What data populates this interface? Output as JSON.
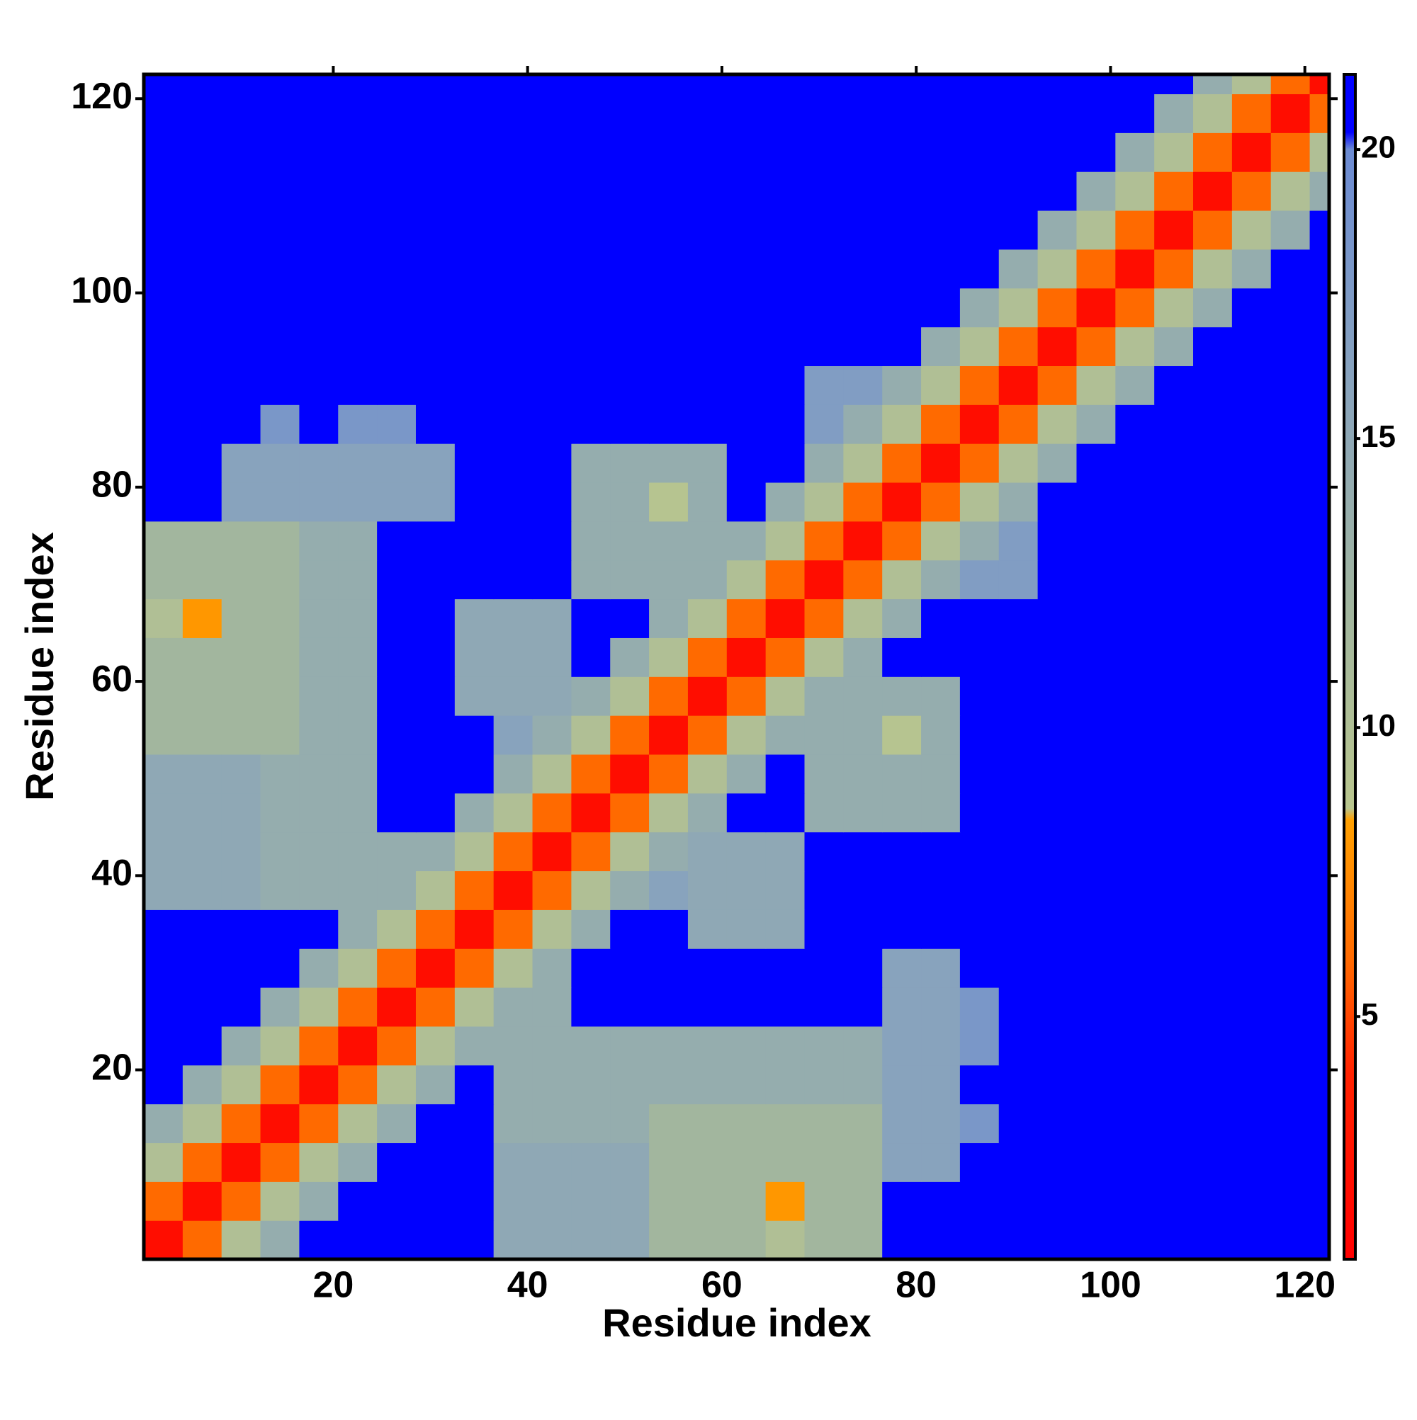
{
  "chart_data": {
    "type": "heatmap",
    "xlabel": "Residue index",
    "ylabel": "Residue index",
    "xbins": [
      0.5,
      4.5,
      8.5,
      12.5,
      16.5,
      20.5,
      24.5,
      28.5,
      32.5,
      36.5,
      40.5,
      44.5,
      48.5,
      52.5,
      56.5,
      60.5,
      64.5,
      68.5,
      72.5,
      76.5,
      80.5,
      84.5,
      88.5,
      92.5,
      96.5,
      100.5,
      104.5,
      108.5,
      112.5,
      116.5,
      120.5,
      122.5
    ],
    "ybins": [
      0.5,
      4.5,
      8.5,
      12.5,
      16.5,
      20.5,
      24.5,
      28.5,
      32.5,
      36.5,
      40.5,
      44.5,
      48.5,
      52.5,
      56.5,
      60.5,
      64.5,
      68.5,
      72.5,
      76.5,
      80.5,
      84.5,
      88.5,
      92.5,
      96.5,
      100.5,
      104.5,
      108.5,
      112.5,
      116.5,
      120.5,
      122.5
    ],
    "values": [
      [
        2,
        6,
        10,
        14,
        21,
        21,
        21,
        21,
        21,
        15,
        15,
        15,
        15,
        12,
        12,
        12,
        10,
        12,
        12,
        21,
        21,
        21,
        21,
        21,
        21,
        21,
        21,
        21,
        21,
        21,
        21
      ],
      [
        6,
        2,
        6,
        10,
        14,
        21,
        21,
        21,
        21,
        15,
        15,
        15,
        15,
        12,
        12,
        12,
        8,
        12,
        12,
        21,
        21,
        21,
        21,
        21,
        21,
        21,
        21,
        21,
        21,
        21,
        21
      ],
      [
        10,
        6,
        2,
        6,
        10,
        14,
        21,
        21,
        21,
        15,
        15,
        15,
        15,
        12,
        12,
        12,
        12,
        12,
        12,
        16,
        16,
        21,
        21,
        21,
        21,
        21,
        21,
        21,
        21,
        21,
        21
      ],
      [
        14,
        10,
        6,
        2,
        6,
        10,
        14,
        21,
        21,
        14,
        14,
        14,
        14,
        12,
        12,
        12,
        12,
        12,
        12,
        16,
        16,
        18,
        21,
        21,
        21,
        21,
        21,
        21,
        21,
        21,
        21
      ],
      [
        21,
        14,
        10,
        6,
        2,
        6,
        10,
        14,
        21,
        14,
        14,
        14,
        14,
        14,
        14,
        14,
        14,
        14,
        14,
        16,
        16,
        21,
        21,
        21,
        21,
        21,
        21,
        21,
        21,
        21,
        21
      ],
      [
        21,
        21,
        14,
        10,
        6,
        2,
        6,
        10,
        14,
        14,
        14,
        14,
        14,
        14,
        14,
        14,
        14,
        14,
        14,
        16,
        16,
        18,
        21,
        21,
        21,
        21,
        21,
        21,
        21,
        21,
        21
      ],
      [
        21,
        21,
        21,
        14,
        10,
        6,
        2,
        6,
        10,
        14,
        14,
        21,
        21,
        21,
        21,
        21,
        21,
        21,
        21,
        16,
        16,
        18,
        21,
        21,
        21,
        21,
        21,
        21,
        21,
        21,
        21
      ],
      [
        21,
        21,
        21,
        21,
        14,
        10,
        6,
        2,
        6,
        10,
        14,
        21,
        21,
        21,
        21,
        21,
        21,
        21,
        21,
        16,
        16,
        21,
        21,
        21,
        21,
        21,
        21,
        21,
        21,
        21,
        21
      ],
      [
        21,
        21,
        21,
        21,
        21,
        14,
        10,
        6,
        2,
        6,
        10,
        14,
        21,
        21,
        15,
        15,
        15,
        21,
        21,
        21,
        21,
        21,
        21,
        21,
        21,
        21,
        21,
        21,
        21,
        21,
        21
      ],
      [
        15,
        15,
        15,
        14,
        14,
        14,
        14,
        10,
        6,
        2,
        6,
        10,
        14,
        16,
        15,
        15,
        15,
        21,
        21,
        21,
        21,
        21,
        21,
        21,
        21,
        21,
        21,
        21,
        21,
        21,
        21
      ],
      [
        15,
        15,
        15,
        14,
        14,
        14,
        14,
        14,
        10,
        6,
        2,
        6,
        10,
        14,
        15,
        15,
        15,
        21,
        21,
        21,
        21,
        21,
        21,
        21,
        21,
        21,
        21,
        21,
        21,
        21,
        21
      ],
      [
        15,
        15,
        15,
        14,
        14,
        14,
        21,
        21,
        14,
        10,
        6,
        2,
        6,
        10,
        14,
        21,
        21,
        14,
        14,
        14,
        14,
        21,
        21,
        21,
        21,
        21,
        21,
        21,
        21,
        21,
        21
      ],
      [
        15,
        15,
        15,
        14,
        14,
        14,
        21,
        21,
        21,
        14,
        10,
        6,
        2,
        6,
        10,
        14,
        21,
        14,
        14,
        14,
        14,
        21,
        21,
        21,
        21,
        21,
        21,
        21,
        21,
        21,
        21
      ],
      [
        12,
        12,
        12,
        12,
        14,
        14,
        21,
        21,
        21,
        16,
        14,
        10,
        6,
        2,
        6,
        10,
        14,
        14,
        14,
        9,
        14,
        21,
        21,
        21,
        21,
        21,
        21,
        21,
        21,
        21,
        21
      ],
      [
        12,
        12,
        12,
        12,
        14,
        14,
        21,
        21,
        15,
        15,
        15,
        14,
        10,
        6,
        2,
        6,
        10,
        14,
        14,
        14,
        14,
        21,
        21,
        21,
        21,
        21,
        21,
        21,
        21,
        21,
        21
      ],
      [
        12,
        12,
        12,
        12,
        14,
        14,
        21,
        21,
        15,
        15,
        15,
        21,
        14,
        10,
        6,
        2,
        6,
        10,
        14,
        21,
        21,
        21,
        21,
        21,
        21,
        21,
        21,
        21,
        21,
        21,
        21
      ],
      [
        10,
        8,
        12,
        12,
        14,
        14,
        21,
        21,
        15,
        15,
        15,
        21,
        21,
        14,
        10,
        6,
        2,
        6,
        10,
        14,
        21,
        21,
        21,
        21,
        21,
        21,
        21,
        21,
        21,
        21,
        21
      ],
      [
        12,
        12,
        12,
        12,
        14,
        14,
        21,
        21,
        21,
        21,
        21,
        14,
        14,
        14,
        14,
        10,
        6,
        2,
        6,
        10,
        14,
        17,
        17,
        21,
        21,
        21,
        21,
        21,
        21,
        21,
        21
      ],
      [
        12,
        12,
        12,
        12,
        14,
        14,
        21,
        21,
        21,
        21,
        21,
        14,
        14,
        14,
        14,
        14,
        10,
        6,
        2,
        6,
        10,
        14,
        17,
        21,
        21,
        21,
        21,
        21,
        21,
        21,
        21
      ],
      [
        21,
        21,
        16,
        16,
        16,
        16,
        16,
        16,
        21,
        21,
        21,
        14,
        14,
        9,
        14,
        21,
        14,
        10,
        6,
        2,
        6,
        10,
        14,
        21,
        21,
        21,
        21,
        21,
        21,
        21,
        21
      ],
      [
        21,
        21,
        16,
        16,
        16,
        16,
        16,
        16,
        21,
        21,
        21,
        14,
        14,
        14,
        14,
        21,
        21,
        14,
        10,
        6,
        2,
        6,
        10,
        14,
        21,
        21,
        21,
        21,
        21,
        21,
        21
      ],
      [
        21,
        21,
        21,
        18,
        21,
        18,
        18,
        21,
        21,
        21,
        21,
        21,
        21,
        21,
        21,
        21,
        21,
        17,
        14,
        10,
        6,
        2,
        6,
        10,
        14,
        21,
        21,
        21,
        21,
        21,
        21
      ],
      [
        21,
        21,
        21,
        21,
        21,
        21,
        21,
        21,
        21,
        21,
        21,
        21,
        21,
        21,
        21,
        21,
        21,
        17,
        17,
        14,
        10,
        6,
        2,
        6,
        10,
        14,
        21,
        21,
        21,
        21,
        21
      ],
      [
        21,
        21,
        21,
        21,
        21,
        21,
        21,
        21,
        21,
        21,
        21,
        21,
        21,
        21,
        21,
        21,
        21,
        21,
        21,
        21,
        14,
        10,
        6,
        2,
        6,
        10,
        14,
        21,
        21,
        21,
        21
      ],
      [
        21,
        21,
        21,
        21,
        21,
        21,
        21,
        21,
        21,
        21,
        21,
        21,
        21,
        21,
        21,
        21,
        21,
        21,
        21,
        21,
        21,
        14,
        10,
        6,
        2,
        6,
        10,
        14,
        21,
        21,
        21
      ],
      [
        21,
        21,
        21,
        21,
        21,
        21,
        21,
        21,
        21,
        21,
        21,
        21,
        21,
        21,
        21,
        21,
        21,
        21,
        21,
        21,
        21,
        21,
        14,
        10,
        6,
        2,
        6,
        10,
        14,
        21,
        21
      ],
      [
        21,
        21,
        21,
        21,
        21,
        21,
        21,
        21,
        21,
        21,
        21,
        21,
        21,
        21,
        21,
        21,
        21,
        21,
        21,
        21,
        21,
        21,
        21,
        14,
        10,
        6,
        2,
        6,
        10,
        14,
        21
      ],
      [
        21,
        21,
        21,
        21,
        21,
        21,
        21,
        21,
        21,
        21,
        21,
        21,
        21,
        21,
        21,
        21,
        21,
        21,
        21,
        21,
        21,
        21,
        21,
        21,
        14,
        10,
        6,
        2,
        6,
        10,
        14
      ],
      [
        21,
        21,
        21,
        21,
        21,
        21,
        21,
        21,
        21,
        21,
        21,
        21,
        21,
        21,
        21,
        21,
        21,
        21,
        21,
        21,
        21,
        21,
        21,
        21,
        21,
        14,
        10,
        6,
        2,
        6,
        10
      ],
      [
        21,
        21,
        21,
        21,
        21,
        21,
        21,
        21,
        21,
        21,
        21,
        21,
        21,
        21,
        21,
        21,
        21,
        21,
        21,
        21,
        21,
        21,
        21,
        21,
        21,
        21,
        14,
        10,
        6,
        2,
        6
      ],
      [
        21,
        21,
        21,
        21,
        21,
        21,
        21,
        21,
        21,
        21,
        21,
        21,
        21,
        21,
        21,
        21,
        21,
        21,
        21,
        21,
        21,
        21,
        21,
        21,
        21,
        21,
        21,
        14,
        10,
        6,
        2
      ]
    ],
    "xlim": [
      0.5,
      122.5
    ],
    "xticks": [
      20,
      40,
      60,
      80,
      100,
      120
    ],
    "ylim": [
      0.5,
      122.5
    ],
    "yticks": [
      20,
      40,
      60,
      80,
      100,
      120
    ],
    "zlim": [
      0.8,
      21.3
    ],
    "zticks": [
      5,
      10,
      15,
      20
    ],
    "colorscale": [
      {
        "value": 0.8,
        "color": "#ff0000"
      },
      {
        "value": 4,
        "color": "#ff2200"
      },
      {
        "value": 6,
        "color": "#ff6a00"
      },
      {
        "value": 8.4,
        "color": "#ffa000"
      },
      {
        "value": 8.6,
        "color": "#b9c68e"
      },
      {
        "value": 12,
        "color": "#a2b69e"
      },
      {
        "value": 16,
        "color": "#88a3bd"
      },
      {
        "value": 20,
        "color": "#6c8bd3"
      },
      {
        "value": 20.3,
        "color": "#0000ff"
      },
      {
        "value": 21.3,
        "color": "#0000ff"
      }
    ]
  }
}
